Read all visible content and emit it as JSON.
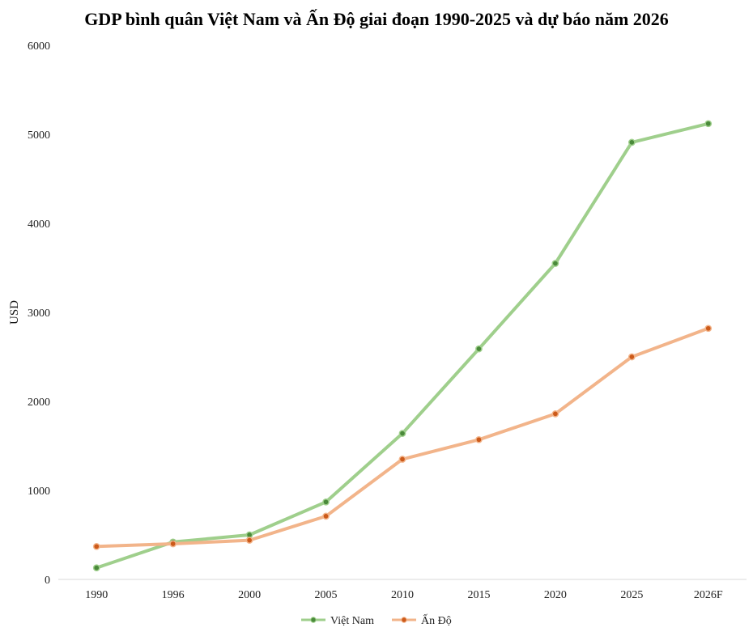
{
  "chart_data": {
    "type": "line",
    "title": "GDP bình quân Việt Nam và Ấn Độ giai đoạn 1990-2025 và dự báo năm 2026",
    "xlabel": "",
    "ylabel": "USD",
    "categories": [
      "1990",
      "1996",
      "2000",
      "2005",
      "2010",
      "2015",
      "2020",
      "2025",
      "2026F"
    ],
    "ylim": [
      0,
      6000
    ],
    "yticks": [
      "0",
      "1000",
      "2000",
      "3000",
      "4000",
      "5000",
      "6000"
    ],
    "grid": false,
    "legend_position": "bottom-center",
    "series": [
      {
        "name": "Việt Nam",
        "color": "#9fcf8c",
        "marker_color": "#4a8a3a",
        "values": [
          130,
          420,
          500,
          870,
          1640,
          2590,
          3550,
          4910,
          5120
        ]
      },
      {
        "name": "Ấn Độ",
        "color": "#f2b48a",
        "marker_color": "#cc5a1a",
        "values": [
          370,
          400,
          440,
          710,
          1350,
          1570,
          1860,
          2500,
          2820
        ]
      }
    ]
  }
}
